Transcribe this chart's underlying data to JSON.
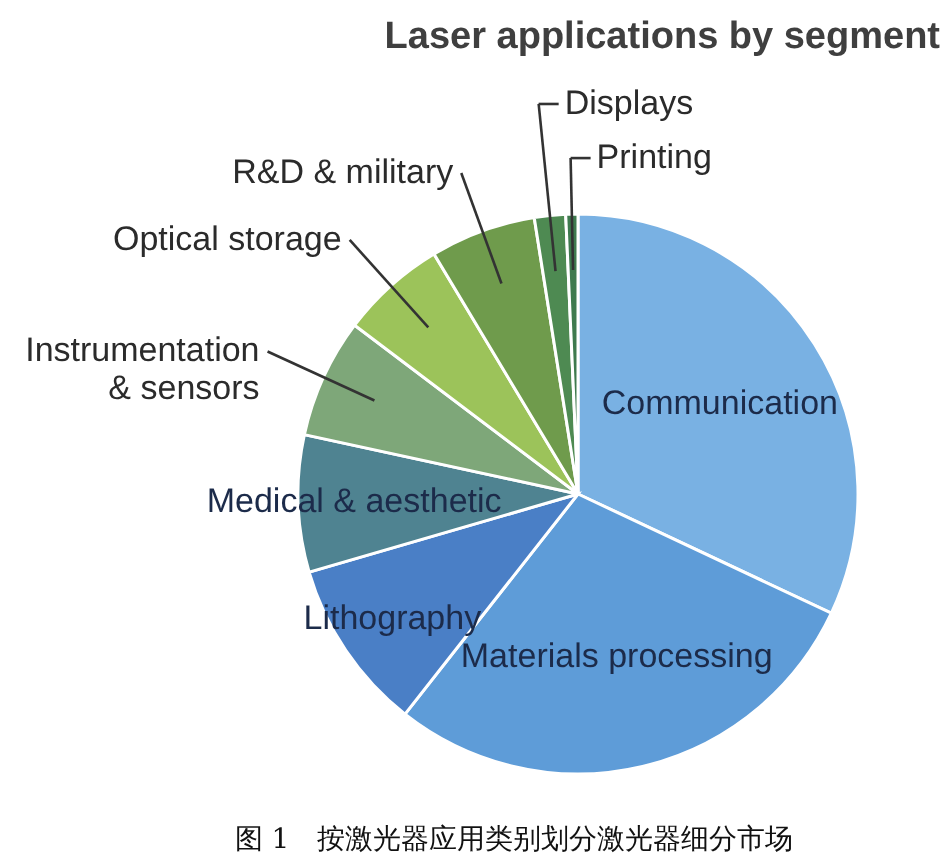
{
  "chart_data": {
    "type": "pie",
    "title": "Laser applications by segment",
    "categories": [
      "Communication",
      "Materials processing",
      "Lithography",
      "Medical & aesthetic",
      "Instrumentation & sensors",
      "Optical storage",
      "R&D & military",
      "Displays",
      "Printing"
    ],
    "values": [
      32.0,
      28.6,
      9.9,
      7.9,
      6.9,
      6.1,
      6.1,
      1.8,
      0.7
    ],
    "colors": [
      "#79b1e3",
      "#5e9cd8",
      "#4a7fc6",
      "#4f8391",
      "#7ea779",
      "#9cc35a",
      "#6f9b4c",
      "#4e8a52",
      "#3e7a4e"
    ],
    "annotations": [
      "图 1　按激光器应用类别划分激光器细分市场"
    ]
  }
}
